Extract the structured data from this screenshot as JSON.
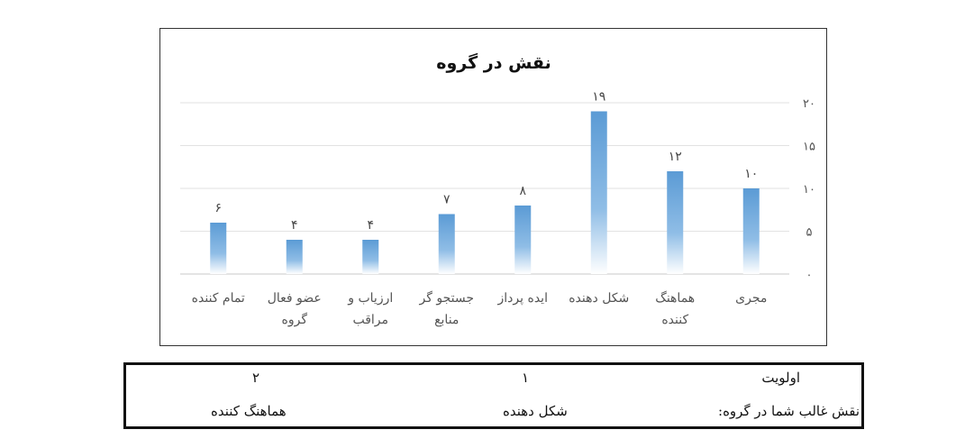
{
  "chart_data": {
    "type": "bar",
    "title": "نقش در گروه",
    "categories": [
      "مجری",
      "هماهنگ کننده",
      "شکل دهنده",
      "ایده پرداز",
      "جستجو گر منابع",
      "ارزیاب و مراقب",
      "عضو فعال گروه",
      "تمام کننده"
    ],
    "category_lines": [
      [
        "مجری"
      ],
      [
        "هماهنگ",
        "کننده"
      ],
      [
        "شکل دهنده"
      ],
      [
        "ایده پرداز"
      ],
      [
        "جستجو گر",
        "منابع"
      ],
      [
        "ارزیاب و",
        "مراقب"
      ],
      [
        "عضو فعال",
        "گروه"
      ],
      [
        "تمام کننده"
      ]
    ],
    "values": [
      10,
      12,
      19,
      8,
      7,
      4,
      4,
      6
    ],
    "value_labels": [
      "۱۰",
      "۱۲",
      "۱۹",
      "۸",
      "۷",
      "۴",
      "۴",
      "۶"
    ],
    "yticks": [
      0,
      5,
      10,
      15,
      20
    ],
    "ytick_labels": [
      "۰",
      "۵",
      "۱۰",
      "۱۵",
      "۲۰"
    ],
    "ylim": [
      0,
      20
    ],
    "xlabel": "",
    "ylabel": "",
    "grid": true,
    "axis_side": "right",
    "bar_color": "#5b9bd5"
  },
  "table": {
    "priority_label": "اولویت",
    "priority_1": "۱",
    "priority_2": "۲",
    "role_label": "نقش غالب شما در گروه:",
    "role_1": "شکل دهنده",
    "role_2": "هماهنگ کننده"
  }
}
